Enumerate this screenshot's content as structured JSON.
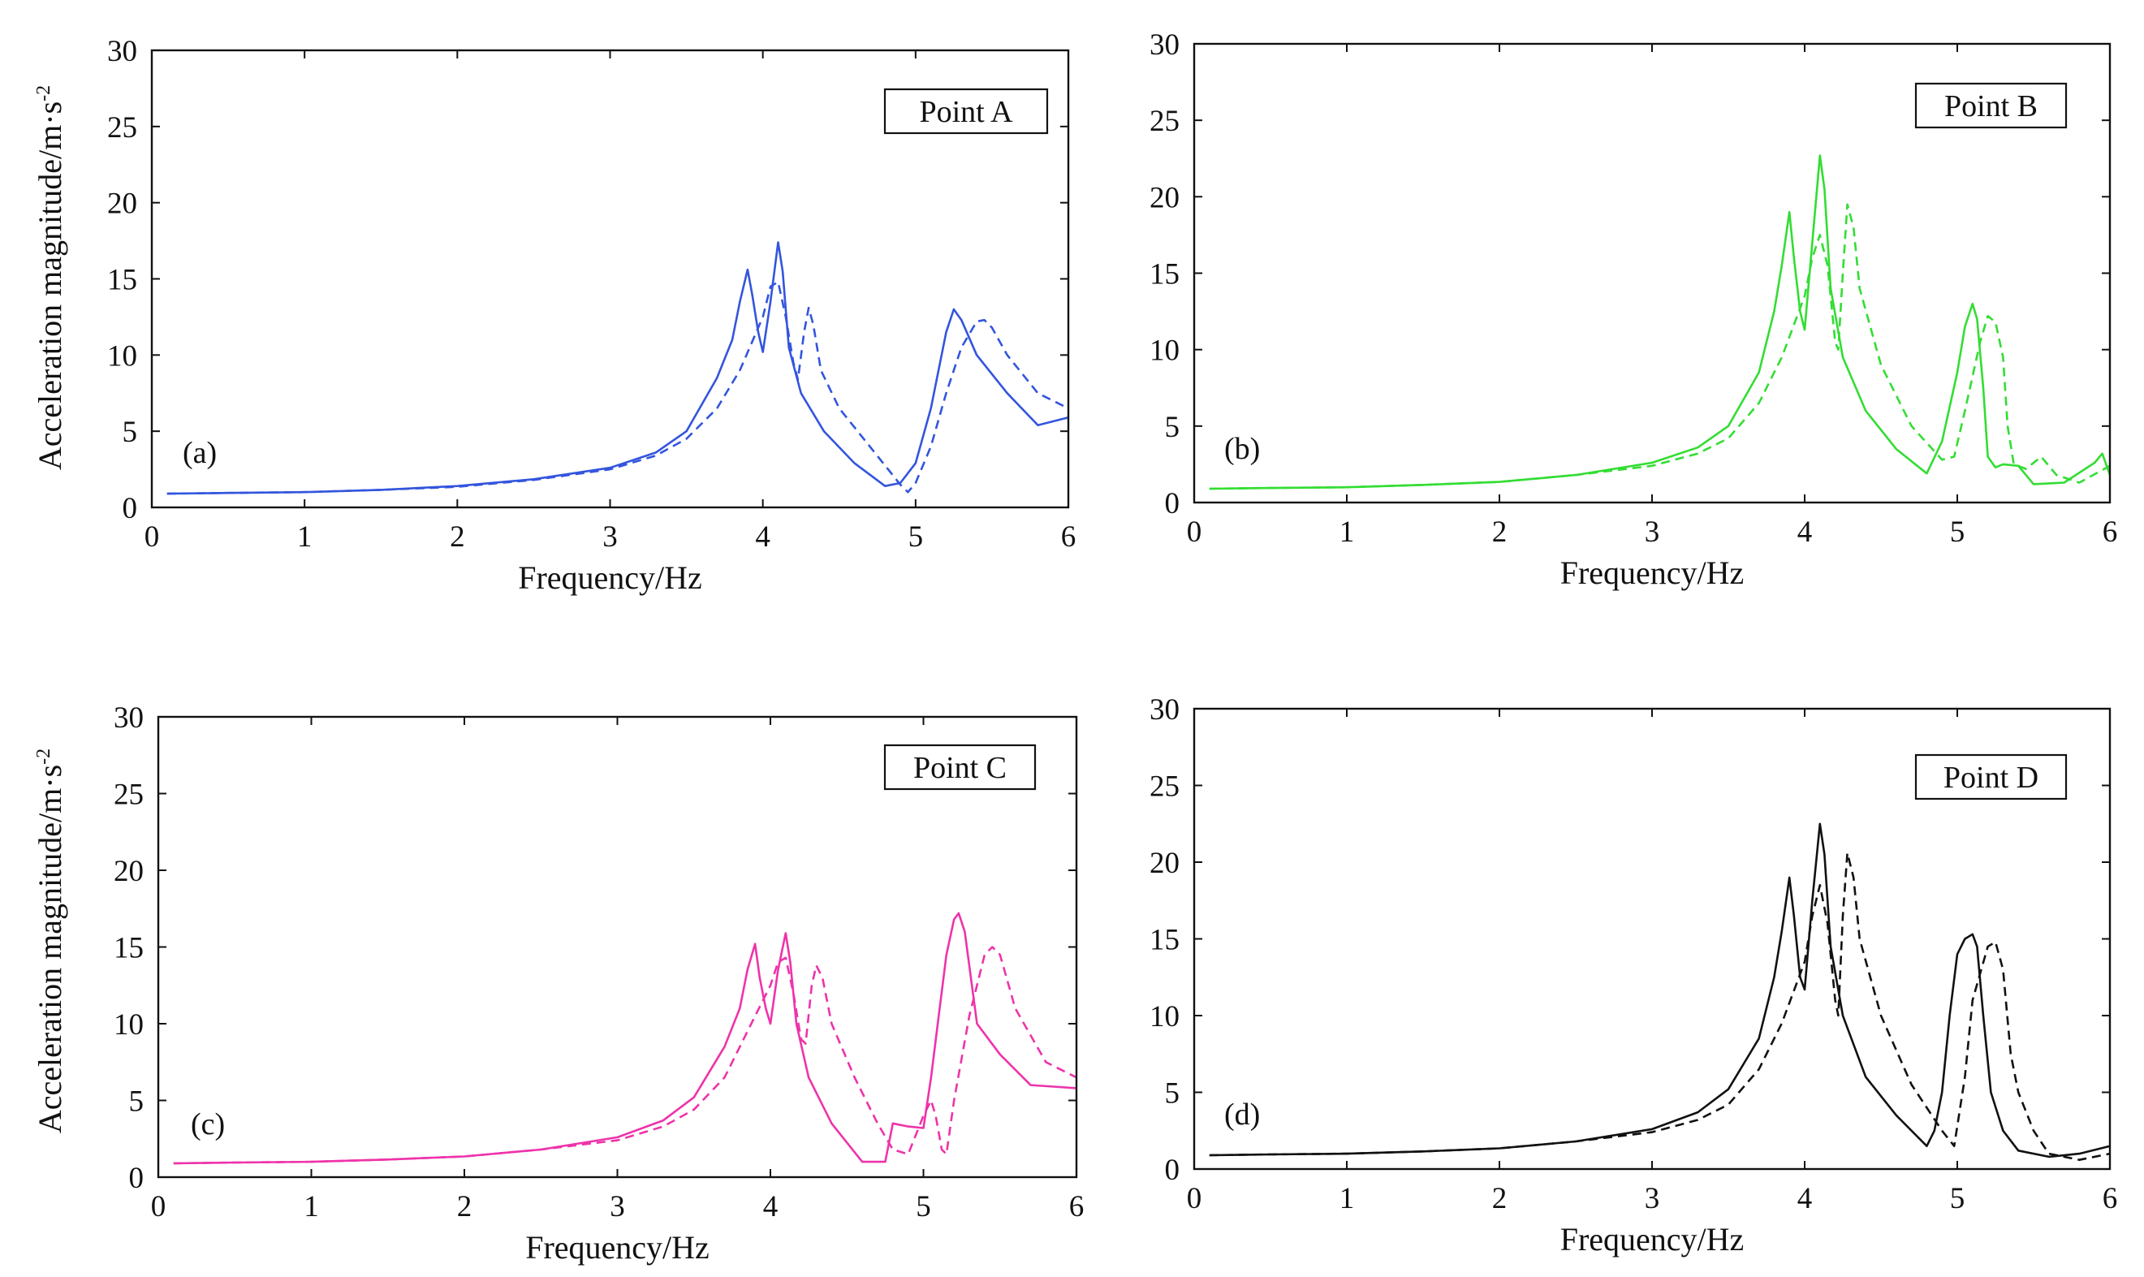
{
  "figure": {
    "xlabel": "Frequency/Hz",
    "ylabel": "Acceleration magnitude/m·s",
    "ylabel_superscript": "-2"
  },
  "chart_data": [
    {
      "type": "line",
      "panel_label": "(a)",
      "title": "Point A",
      "color": "#3355dd",
      "xlabel": "Frequency/Hz",
      "ylabel": "Acceleration magnitude/m·s-2",
      "xlim": [
        0,
        6
      ],
      "ylim": [
        0,
        30
      ],
      "xticks": [
        "0",
        "1",
        "2",
        "3",
        "4",
        "5",
        "6"
      ],
      "yticks": [
        "0",
        "5",
        "10",
        "15",
        "20",
        "25",
        "30"
      ],
      "series": [
        {
          "name": "solid",
          "style": "solid",
          "x": [
            0.1,
            0.5,
            1,
            1.5,
            2,
            2.5,
            3,
            3.3,
            3.5,
            3.7,
            3.8,
            3.85,
            3.9,
            3.93,
            3.97,
            4.0,
            4.05,
            4.1,
            4.13,
            4.17,
            4.25,
            4.4,
            4.6,
            4.8,
            4.9,
            5.0,
            5.1,
            5.2,
            5.25,
            5.3,
            5.4,
            5.6,
            5.8,
            6.0
          ],
          "y": [
            0.9,
            0.95,
            1.0,
            1.15,
            1.4,
            1.85,
            2.6,
            3.6,
            5.0,
            8.5,
            11.0,
            13.5,
            15.6,
            14.0,
            11.5,
            10.2,
            13.5,
            17.4,
            15.5,
            10.5,
            7.5,
            5.0,
            2.9,
            1.4,
            1.6,
            2.9,
            6.5,
            11.5,
            13.0,
            12.3,
            10.0,
            7.5,
            5.4,
            5.9
          ]
        },
        {
          "name": "dashed",
          "style": "dashed",
          "x": [
            0.1,
            0.5,
            1,
            1.5,
            2,
            2.5,
            3,
            3.3,
            3.5,
            3.7,
            3.85,
            4.0,
            4.05,
            4.1,
            4.15,
            4.2,
            4.23,
            4.27,
            4.3,
            4.33,
            4.38,
            4.5,
            4.7,
            4.9,
            4.95,
            5.0,
            5.1,
            5.2,
            5.3,
            5.4,
            5.45,
            5.5,
            5.6,
            5.8,
            6.0
          ],
          "y": [
            0.9,
            0.95,
            1.0,
            1.15,
            1.35,
            1.8,
            2.5,
            3.4,
            4.5,
            6.5,
            9.0,
            12.5,
            14.5,
            14.8,
            12.5,
            9.5,
            8.4,
            11.5,
            13.1,
            12.0,
            9.0,
            6.5,
            4.0,
            1.5,
            1.0,
            1.6,
            4.0,
            7.5,
            10.5,
            12.2,
            12.3,
            11.8,
            10.0,
            7.5,
            6.5
          ]
        }
      ]
    },
    {
      "type": "line",
      "panel_label": "(b)",
      "title": "Point B",
      "color": "#33dd33",
      "xlabel": "Frequency/Hz",
      "ylabel": "",
      "xlim": [
        0,
        6
      ],
      "ylim": [
        0,
        30
      ],
      "xticks": [
        "0",
        "1",
        "2",
        "3",
        "4",
        "5",
        "6"
      ],
      "yticks": [
        "0",
        "5",
        "10",
        "15",
        "20",
        "25",
        "30"
      ],
      "series": [
        {
          "name": "solid",
          "style": "solid",
          "x": [
            0.1,
            0.5,
            1,
            1.5,
            2,
            2.5,
            3,
            3.3,
            3.5,
            3.7,
            3.8,
            3.85,
            3.9,
            3.93,
            3.97,
            4.0,
            4.05,
            4.1,
            4.13,
            4.17,
            4.25,
            4.4,
            4.6,
            4.8,
            4.9,
            5.0,
            5.05,
            5.1,
            5.13,
            5.17,
            5.2,
            5.25,
            5.3,
            5.4,
            5.5,
            5.7,
            5.9,
            5.95,
            6.0
          ],
          "y": [
            0.9,
            0.95,
            1.0,
            1.15,
            1.35,
            1.8,
            2.6,
            3.6,
            5.0,
            8.5,
            12.5,
            15.5,
            19.0,
            16.0,
            12.5,
            11.3,
            17.0,
            22.7,
            20.5,
            14.0,
            9.5,
            6.0,
            3.5,
            1.9,
            4.0,
            8.5,
            11.5,
            13.0,
            12.0,
            7.5,
            3.0,
            2.3,
            2.5,
            2.4,
            1.2,
            1.3,
            2.6,
            3.2,
            1.8
          ]
        },
        {
          "name": "dashed",
          "style": "dashed",
          "x": [
            0.1,
            0.5,
            1,
            1.5,
            2,
            2.5,
            3,
            3.3,
            3.5,
            3.7,
            3.85,
            4.0,
            4.05,
            4.1,
            4.15,
            4.2,
            4.22,
            4.25,
            4.28,
            4.32,
            4.36,
            4.5,
            4.7,
            4.9,
            4.98,
            5.05,
            5.15,
            5.2,
            5.25,
            5.3,
            5.33,
            5.37,
            5.45,
            5.55,
            5.65,
            5.8,
            6.0
          ],
          "y": [
            0.9,
            0.95,
            1.0,
            1.15,
            1.35,
            1.8,
            2.4,
            3.2,
            4.2,
            6.5,
            9.5,
            13.5,
            16.0,
            17.5,
            15.5,
            10.5,
            10.0,
            15.0,
            19.5,
            18.0,
            14.0,
            9.0,
            5.0,
            2.8,
            3.0,
            6.0,
            10.5,
            12.2,
            11.8,
            9.5,
            5.0,
            2.5,
            2.2,
            3.0,
            1.8,
            1.3,
            2.4
          ]
        }
      ]
    },
    {
      "type": "line",
      "panel_label": "(c)",
      "title": "Point C",
      "color": "#ee33aa",
      "xlabel": "Frequency/Hz",
      "ylabel": "Acceleration magnitude/m·s-2",
      "xlim": [
        0,
        6
      ],
      "ylim": [
        0,
        30
      ],
      "xticks": [
        "0",
        "1",
        "2",
        "3",
        "4",
        "5",
        "6"
      ],
      "yticks": [
        "0",
        "5",
        "10",
        "15",
        "20",
        "25",
        "30"
      ],
      "series": [
        {
          "name": "solid",
          "style": "solid",
          "x": [
            0.1,
            0.5,
            1,
            1.5,
            2,
            2.5,
            3,
            3.3,
            3.5,
            3.7,
            3.8,
            3.85,
            3.9,
            3.93,
            3.97,
            4.0,
            4.05,
            4.1,
            4.13,
            4.17,
            4.25,
            4.4,
            4.6,
            4.75,
            4.8,
            4.9,
            5.0,
            5.05,
            5.1,
            5.15,
            5.2,
            5.23,
            5.27,
            5.35,
            5.5,
            5.7,
            5.85,
            6.0
          ],
          "y": [
            0.9,
            0.95,
            1.0,
            1.15,
            1.35,
            1.8,
            2.6,
            3.7,
            5.2,
            8.5,
            11.0,
            13.5,
            15.2,
            13.0,
            11.0,
            10.0,
            13.5,
            15.9,
            14.0,
            10.0,
            6.5,
            3.5,
            1.0,
            1.0,
            3.5,
            3.3,
            3.2,
            6.5,
            10.5,
            14.5,
            16.8,
            17.2,
            16.0,
            10.0,
            8.0,
            6.0,
            5.9,
            5.8
          ]
        },
        {
          "name": "dashed",
          "style": "dashed",
          "x": [
            0.1,
            0.5,
            1,
            1.5,
            2,
            2.5,
            3,
            3.3,
            3.5,
            3.7,
            3.85,
            4.0,
            4.05,
            4.1,
            4.15,
            4.2,
            4.23,
            4.27,
            4.3,
            4.34,
            4.4,
            4.55,
            4.7,
            4.8,
            4.9,
            5.0,
            5.05,
            5.08,
            5.12,
            5.15,
            5.2,
            5.3,
            5.4,
            5.45,
            5.5,
            5.6,
            5.8,
            6.0
          ],
          "y": [
            0.9,
            0.95,
            1.0,
            1.15,
            1.35,
            1.8,
            2.4,
            3.3,
            4.4,
            6.5,
            9.5,
            12.5,
            14.0,
            14.3,
            12.0,
            9.0,
            8.7,
            12.5,
            13.8,
            13.0,
            10.0,
            6.5,
            3.5,
            1.8,
            1.5,
            4.0,
            5.0,
            4.0,
            1.8,
            1.5,
            5.0,
            10.5,
            14.5,
            15.0,
            14.5,
            11.0,
            7.5,
            6.5
          ]
        }
      ]
    },
    {
      "type": "line",
      "panel_label": "(d)",
      "title": "Point D",
      "color": "#111111",
      "xlabel": "Frequency/Hz",
      "ylabel": "",
      "xlim": [
        0,
        6
      ],
      "ylim": [
        0,
        30
      ],
      "xticks": [
        "0",
        "1",
        "2",
        "3",
        "4",
        "5",
        "6"
      ],
      "yticks": [
        "0",
        "5",
        "10",
        "15",
        "20",
        "25",
        "30"
      ],
      "series": [
        {
          "name": "solid",
          "style": "solid",
          "x": [
            0.1,
            0.5,
            1,
            1.5,
            2,
            2.5,
            3,
            3.3,
            3.5,
            3.7,
            3.8,
            3.85,
            3.9,
            3.93,
            3.97,
            4.0,
            4.05,
            4.1,
            4.13,
            4.17,
            4.25,
            4.4,
            4.6,
            4.8,
            4.85,
            4.9,
            4.95,
            5.0,
            5.05,
            5.1,
            5.13,
            5.17,
            5.22,
            5.3,
            5.4,
            5.6,
            5.8,
            6.0
          ],
          "y": [
            0.9,
            0.95,
            1.0,
            1.15,
            1.35,
            1.8,
            2.6,
            3.7,
            5.2,
            8.5,
            12.5,
            15.5,
            19.0,
            16.5,
            12.5,
            11.7,
            17.5,
            22.5,
            20.5,
            14.5,
            10.0,
            6.0,
            3.5,
            1.5,
            2.5,
            5.0,
            10.0,
            14.0,
            15.0,
            15.3,
            14.5,
            10.0,
            5.0,
            2.5,
            1.2,
            0.8,
            1.0,
            1.5
          ]
        },
        {
          "name": "dashed",
          "style": "dashed",
          "x": [
            0.1,
            0.5,
            1,
            1.5,
            2,
            2.5,
            3,
            3.3,
            3.5,
            3.7,
            3.85,
            4.0,
            4.05,
            4.1,
            4.15,
            4.2,
            4.22,
            4.25,
            4.28,
            4.32,
            4.36,
            4.5,
            4.7,
            4.9,
            4.98,
            5.05,
            5.1,
            5.2,
            5.25,
            5.3,
            5.35,
            5.4,
            5.5,
            5.6,
            5.8,
            6.0
          ],
          "y": [
            0.9,
            0.95,
            1.0,
            1.15,
            1.35,
            1.8,
            2.4,
            3.2,
            4.2,
            6.5,
            9.5,
            13.5,
            16.5,
            18.5,
            16.0,
            11.0,
            10.0,
            16.5,
            20.6,
            19.0,
            15.0,
            10.0,
            5.5,
            2.5,
            1.5,
            6.0,
            11.0,
            14.5,
            14.8,
            13.0,
            7.5,
            5.0,
            2.5,
            1.0,
            0.6,
            1.0
          ]
        }
      ]
    }
  ]
}
